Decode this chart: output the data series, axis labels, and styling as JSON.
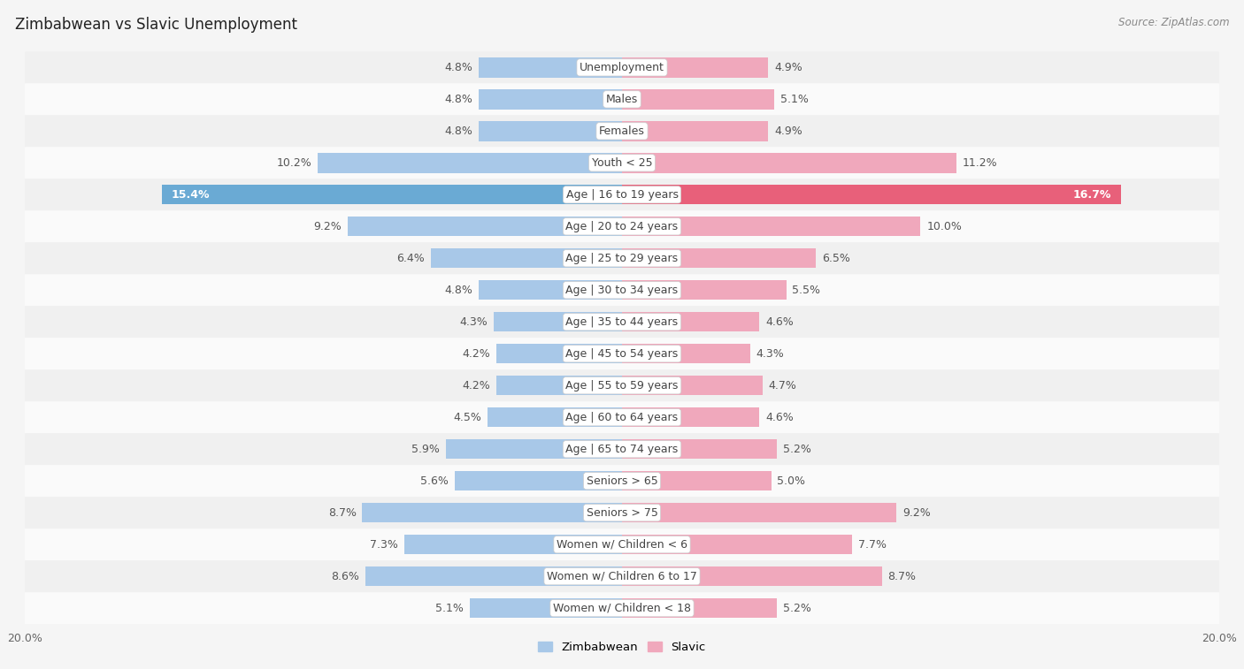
{
  "title": "Zimbabwean vs Slavic Unemployment",
  "source": "Source: ZipAtlas.com",
  "categories": [
    "Unemployment",
    "Males",
    "Females",
    "Youth < 25",
    "Age | 16 to 19 years",
    "Age | 20 to 24 years",
    "Age | 25 to 29 years",
    "Age | 30 to 34 years",
    "Age | 35 to 44 years",
    "Age | 45 to 54 years",
    "Age | 55 to 59 years",
    "Age | 60 to 64 years",
    "Age | 65 to 74 years",
    "Seniors > 65",
    "Seniors > 75",
    "Women w/ Children < 6",
    "Women w/ Children 6 to 17",
    "Women w/ Children < 18"
  ],
  "zimbabwean": [
    4.8,
    4.8,
    4.8,
    10.2,
    15.4,
    9.2,
    6.4,
    4.8,
    4.3,
    4.2,
    4.2,
    4.5,
    5.9,
    5.6,
    8.7,
    7.3,
    8.6,
    5.1
  ],
  "slavic": [
    4.9,
    5.1,
    4.9,
    11.2,
    16.7,
    10.0,
    6.5,
    5.5,
    4.6,
    4.3,
    4.7,
    4.6,
    5.2,
    5.0,
    9.2,
    7.7,
    8.7,
    5.2
  ],
  "zim_color_normal": "#a8c8e8",
  "slav_color_normal": "#f0a8bc",
  "zim_color_highlight": "#6aaad4",
  "slav_color_highlight": "#e8607a",
  "highlight_index": 4,
  "max_val": 20.0,
  "bar_height": 0.62,
  "row_colors": [
    "#f0f0f0",
    "#fafafa"
  ],
  "bg_color": "#f5f5f5",
  "label_bg": "#ffffff",
  "legend_zim": "Zimbabwean",
  "legend_slav": "Slavic",
  "value_fontsize": 9,
  "label_fontsize": 9,
  "title_fontsize": 12
}
